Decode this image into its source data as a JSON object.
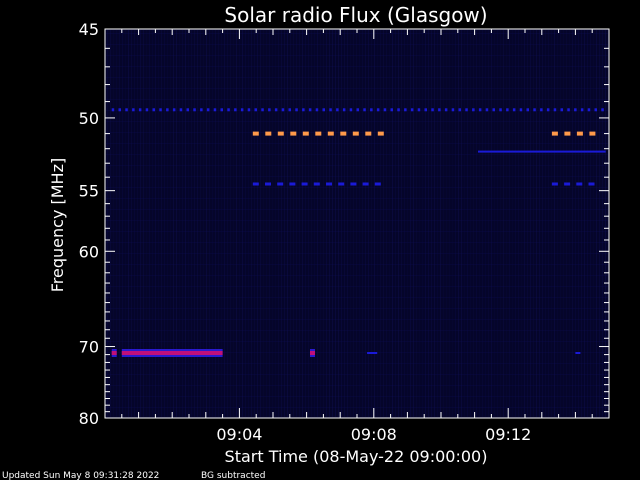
{
  "chart_data": {
    "type": "heatmap",
    "title": "Solar radio Flux (Glasgow)",
    "xlabel": "Start Time (08-May-22 09:00:00)",
    "ylabel": "Frequency [MHz]",
    "x_unit": "minutes after 09:00",
    "xlim": [
      0,
      15
    ],
    "ylim": [
      45,
      80
    ],
    "y_reversed": true,
    "x_ticks": [
      {
        "value": 4,
        "label": "09:04"
      },
      {
        "value": 8,
        "label": "09:08"
      },
      {
        "value": 12,
        "label": "09:12"
      }
    ],
    "y_ticks": [
      {
        "value": 45,
        "label": "45"
      },
      {
        "value": 50,
        "label": "50"
      },
      {
        "value": 55,
        "label": "55"
      },
      {
        "value": 60,
        "label": "60"
      },
      {
        "value": 70,
        "label": "70"
      },
      {
        "value": 80,
        "label": "80"
      }
    ],
    "colors": {
      "background": "#000000",
      "plot_background": "#05052a",
      "low": "#1a1ad8",
      "medium": "#c0107a",
      "high": "#ff9a4a",
      "axes": "#ffffff"
    },
    "features": [
      {
        "name": "band-49.5",
        "freq": 49.5,
        "start": 0.2,
        "end": 14.9,
        "level": "low",
        "dashed": true
      },
      {
        "name": "band-51",
        "freq": 51,
        "start": 4.4,
        "end": 8.4,
        "level": "high",
        "dashed": true
      },
      {
        "name": "band-51b",
        "freq": 51,
        "start": 13.3,
        "end": 14.9,
        "level": "high",
        "dashed": true
      },
      {
        "name": "band-52.2",
        "freq": 52.2,
        "start": 11.1,
        "end": 14.9,
        "level": "low",
        "dashed": false
      },
      {
        "name": "band-54.5",
        "freq": 54.5,
        "start": 4.4,
        "end": 8.4,
        "level": "low",
        "dashed": true
      },
      {
        "name": "band-54.5b",
        "freq": 54.5,
        "start": 13.3,
        "end": 14.9,
        "level": "low",
        "dashed": true
      },
      {
        "name": "burst-70.8a",
        "freq": 70.8,
        "start": 0.2,
        "end": 0.35,
        "level": "medium",
        "dashed": false
      },
      {
        "name": "burst-70.8b",
        "freq": 70.8,
        "start": 0.5,
        "end": 3.5,
        "level": "medium",
        "dashed": false
      },
      {
        "name": "burst-70.8c",
        "freq": 70.8,
        "start": 6.1,
        "end": 6.25,
        "level": "medium",
        "dashed": false
      },
      {
        "name": "blip-70.8d",
        "freq": 70.8,
        "start": 7.8,
        "end": 8.1,
        "level": "low",
        "dashed": false
      },
      {
        "name": "blip-70.8e",
        "freq": 70.8,
        "start": 14.0,
        "end": 14.15,
        "level": "low",
        "dashed": false
      }
    ]
  },
  "footer": {
    "updated": "Updated Sun May  8 09:31:28 2022",
    "note": "BG subtracted"
  }
}
